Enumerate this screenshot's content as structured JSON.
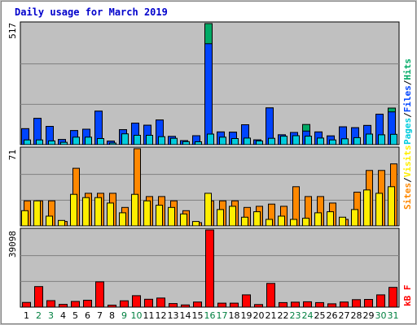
{
  "chart_title": "Daily usage for March 2019",
  "colors": {
    "pages": "#00ccdd",
    "files": "#0044ff",
    "hits": "#00aa66",
    "visits": "#ffee00",
    "sites": "#ff8800",
    "kbytes": "#ff0000",
    "weekend_day": "#008040",
    "weekday": "#000000",
    "panel_bg": "#c0c0c0",
    "title": "#0000cc"
  },
  "legend": {
    "top": {
      "pages": "Pages",
      "sep1": "/",
      "files": "Files",
      "sep2": "/",
      "hits": "Hits"
    },
    "middle": {
      "sites": "Sites",
      "sep": "/",
      "visits": "Visits"
    },
    "bottom": {
      "kbytes": "kB F"
    }
  },
  "chart_data": [
    {
      "type": "bar",
      "name": "hits-files-pages",
      "y_max_label": "517",
      "ylim": [
        0,
        517
      ],
      "categories": [
        "1",
        "2",
        "3",
        "4",
        "5",
        "6",
        "7",
        "8",
        "9",
        "10",
        "11",
        "12",
        "13",
        "14",
        "15",
        "16",
        "17",
        "18",
        "19",
        "20",
        "21",
        "22",
        "23",
        "24",
        "25",
        "26",
        "27",
        "28",
        "29",
        "30",
        "31"
      ],
      "weekend_days": [
        "2",
        "3",
        "9",
        "10",
        "16",
        "17",
        "23",
        "24",
        "30",
        "31"
      ],
      "series": [
        {
          "name": "Hits",
          "values": [
            68,
            112,
            78,
            22,
            60,
            66,
            143,
            15,
            64,
            92,
            83,
            105,
            35,
            17,
            38,
            517,
            54,
            53,
            85,
            20,
            157,
            42,
            52,
            86,
            54,
            37,
            76,
            72,
            82,
            130,
            156
          ]
        },
        {
          "name": "Files",
          "values": [
            68,
            112,
            78,
            22,
            60,
            66,
            143,
            15,
            64,
            92,
            83,
            105,
            35,
            17,
            38,
            431,
            54,
            53,
            85,
            20,
            157,
            42,
            52,
            58,
            54,
            37,
            76,
            72,
            82,
            130,
            140
          ]
        },
        {
          "name": "Pages",
          "values": [
            20,
            20,
            16,
            10,
            32,
            32,
            26,
            7,
            46,
            40,
            40,
            34,
            27,
            13,
            12,
            45,
            32,
            26,
            28,
            16,
            27,
            36,
            38,
            36,
            28,
            20,
            25,
            30,
            45,
            42,
            44
          ]
        }
      ]
    },
    {
      "type": "bar",
      "name": "visits-sites",
      "y_max_label": "71",
      "ylim": [
        0,
        71
      ],
      "categories": [
        "1",
        "2",
        "3",
        "4",
        "5",
        "6",
        "7",
        "8",
        "9",
        "10",
        "11",
        "12",
        "13",
        "14",
        "15",
        "16",
        "17",
        "18",
        "19",
        "20",
        "21",
        "22",
        "23",
        "24",
        "25",
        "26",
        "27",
        "28",
        "29",
        "30",
        "31"
      ],
      "series": [
        {
          "name": "Sites",
          "values": [
            23,
            23,
            23,
            4,
            53,
            30,
            30,
            30,
            17,
            71,
            27,
            27,
            23,
            14,
            3,
            23,
            23,
            23,
            17,
            18,
            20,
            18,
            36,
            27,
            27,
            21,
            6,
            31,
            51,
            51,
            57
          ]
        },
        {
          "name": "Visits",
          "values": [
            14,
            23,
            9,
            5,
            29,
            26,
            26,
            21,
            12,
            29,
            23,
            19,
            17,
            11,
            4,
            30,
            15,
            18,
            8,
            13,
            6,
            9,
            6,
            7,
            12,
            13,
            8,
            15,
            33,
            30,
            36
          ]
        }
      ]
    },
    {
      "type": "bar",
      "name": "kbytes",
      "y_max_label": "39098",
      "ylim": [
        0,
        39098
      ],
      "categories": [
        "1",
        "2",
        "3",
        "4",
        "5",
        "6",
        "7",
        "8",
        "9",
        "10",
        "11",
        "12",
        "13",
        "14",
        "15",
        "16",
        "17",
        "18",
        "19",
        "20",
        "21",
        "22",
        "23",
        "24",
        "25",
        "26",
        "27",
        "28",
        "29",
        "30",
        "31"
      ],
      "series": [
        {
          "name": "kB F",
          "values": [
            2400,
            10400,
            3300,
            1400,
            2900,
            3500,
            12800,
            1000,
            3200,
            5800,
            4000,
            4600,
            1800,
            1100,
            2600,
            39098,
            2000,
            2000,
            6200,
            1300,
            12000,
            2300,
            2500,
            2700,
            2300,
            1700,
            2600,
            3800,
            3900,
            6200,
            10000
          ]
        }
      ]
    }
  ]
}
